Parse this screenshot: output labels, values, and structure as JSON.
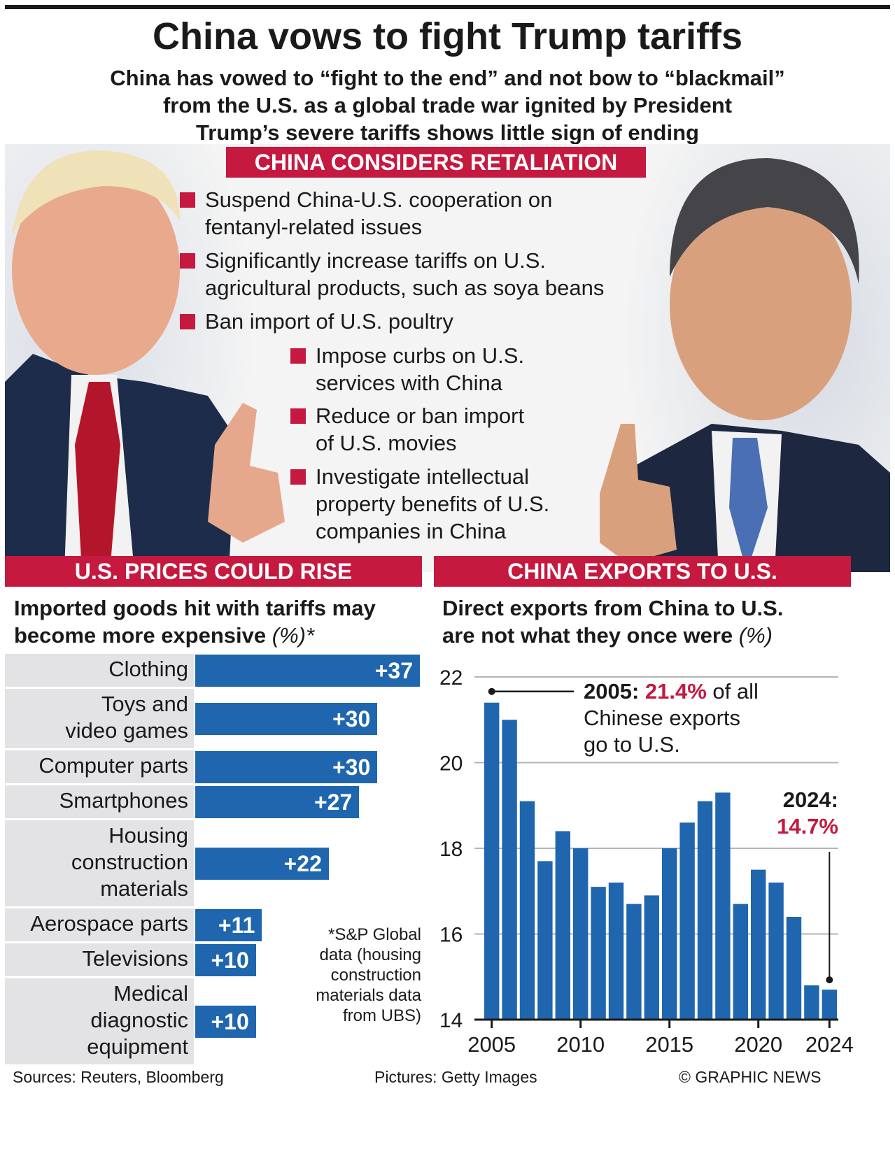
{
  "header": {
    "title": "China vows to fight Trump tariffs",
    "subtitle_lines": [
      "China has vowed to “fight to the end” and not bow to “blackmail”",
      "from the U.S. as a global trade war ignited by President",
      "Trump’s severe tariffs shows little sign of ending"
    ]
  },
  "retaliation": {
    "heading": "CHINA CONSIDERS RETALIATION",
    "items": [
      {
        "lines": [
          "Suspend China-U.S. cooperation on",
          "fentanyl-related issues"
        ]
      },
      {
        "lines": [
          "Significantly increase tariffs on U.S.",
          "agricultural products, such as soya beans"
        ]
      },
      {
        "lines": [
          "Ban import of U.S. poultry"
        ]
      },
      {
        "lines": [
          "Impose curbs on U.S.",
          "services with China"
        ]
      },
      {
        "lines": [
          "Reduce or ban import",
          "of U.S. movies"
        ]
      },
      {
        "lines": [
          "Investigate intellectual",
          "property benefits of U.S.",
          "companies in China"
        ]
      }
    ]
  },
  "prices": {
    "heading": "U.S. PRICES COULD RISE",
    "subtitle_lines": [
      "Imported goods hit with tariffs may",
      "become more expensive"
    ],
    "unit": "(%)*",
    "footnote_lines": [
      "*S&P Global",
      "data (housing",
      "construction",
      "materials data",
      "from UBS)"
    ]
  },
  "exports": {
    "heading": "CHINA EXPORTS TO U.S.",
    "subtitle_lines": [
      "Direct exports from China to U.S.",
      "are not what they once were"
    ],
    "unit": "(%)",
    "annotation_2005": {
      "year": "2005:",
      "value": "21.4%",
      "rest_lines": [
        " of all",
        "Chinese exports",
        "go to U.S."
      ]
    },
    "annotation_2024": {
      "year": "2024:",
      "value": "14.7%"
    }
  },
  "footer": {
    "sources": "Sources: Reuters, Bloomberg",
    "pictures": "Pictures: Getty Images",
    "credit": "© GRAPHIC NEWS"
  },
  "colors": {
    "accent": "#c5193f",
    "bar": "#1f66ae",
    "label_bg": "#e3e3e6"
  },
  "chart_data": [
    {
      "type": "bar",
      "orientation": "horizontal",
      "categories": [
        [
          "Clothing"
        ],
        [
          "Toys and",
          "video games"
        ],
        [
          "Computer parts"
        ],
        [
          "Smartphones"
        ],
        [
          "Housing",
          "construction",
          "materials"
        ],
        [
          "Aerospace parts"
        ],
        [
          "Televisions"
        ],
        [
          "Medical",
          "diagnostic",
          "equipment"
        ]
      ],
      "values": [
        37,
        30,
        30,
        27,
        22,
        11,
        10,
        10
      ],
      "value_labels": [
        "+37",
        "+30",
        "+30",
        "+27",
        "+22",
        "+11",
        "+10",
        "+10"
      ],
      "title": "Imported goods hit with tariffs may become more expensive",
      "xlim": [
        0,
        37
      ]
    },
    {
      "type": "bar",
      "x": [
        2005,
        2006,
        2007,
        2008,
        2009,
        2010,
        2011,
        2012,
        2013,
        2014,
        2015,
        2016,
        2017,
        2018,
        2019,
        2020,
        2021,
        2022,
        2023,
        2024
      ],
      "values": [
        21.4,
        21.0,
        19.1,
        17.7,
        18.4,
        18.0,
        17.1,
        17.2,
        16.7,
        16.9,
        18.0,
        18.6,
        19.1,
        19.3,
        16.7,
        17.5,
        17.2,
        16.4,
        14.8,
        14.7
      ],
      "title": "Direct exports from China to U.S. are not what they once were",
      "ylim": [
        14,
        22
      ],
      "yticks": [
        14,
        16,
        18,
        20,
        22
      ],
      "xticks": [
        2005,
        2010,
        2015,
        2020,
        2024
      ],
      "grid": true
    }
  ]
}
